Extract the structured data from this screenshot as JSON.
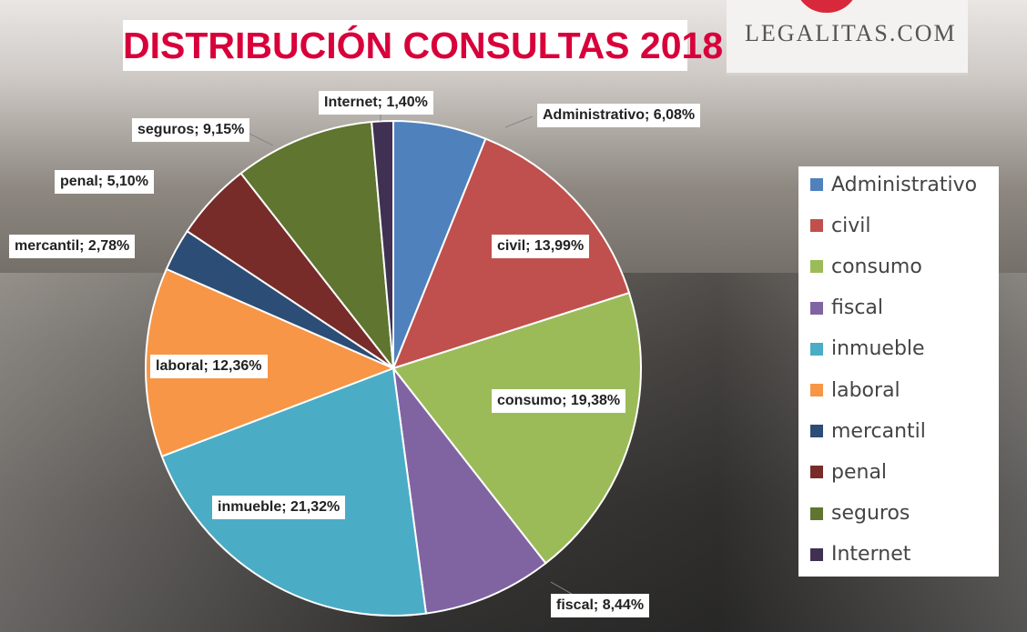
{
  "background": {
    "brand_sign": "LEGALITAS.COM"
  },
  "chart_data": {
    "type": "pie",
    "title": "DISTRIBUCIÓN CONSULTAS 2018",
    "start_angle": "top, clockwise",
    "legend_position": "right",
    "unit": "%",
    "slices": [
      {
        "name": "Administrativo",
        "value": 6.08,
        "label": "Administrativo; 6,08%",
        "color": "#4F81BD"
      },
      {
        "name": "civil",
        "value": 13.99,
        "label": "civil; 13,99%",
        "color": "#C0504D"
      },
      {
        "name": "consumo",
        "value": 19.38,
        "label": "consumo; 19,38%",
        "color": "#9BBB59"
      },
      {
        "name": "fiscal",
        "value": 8.44,
        "label": "fiscal; 8,44%",
        "color": "#8064A2"
      },
      {
        "name": "inmueble",
        "value": 21.32,
        "label": "inmueble; 21,32%",
        "color": "#4BACC6"
      },
      {
        "name": "laboral",
        "value": 12.36,
        "label": "laboral; 12,36%",
        "color": "#F79646"
      },
      {
        "name": "mercantil",
        "value": 2.78,
        "label": "mercantil; 2,78%",
        "color": "#2C4D75"
      },
      {
        "name": "penal",
        "value": 5.1,
        "label": "penal; 5,10%",
        "color": "#772C2A"
      },
      {
        "name": "seguros",
        "value": 9.15,
        "label": "seguros; 9,15%",
        "color": "#5F7530"
      },
      {
        "name": "Internet",
        "value": 1.4,
        "label": "Internet; 1,40%",
        "color": "#403152"
      }
    ]
  }
}
